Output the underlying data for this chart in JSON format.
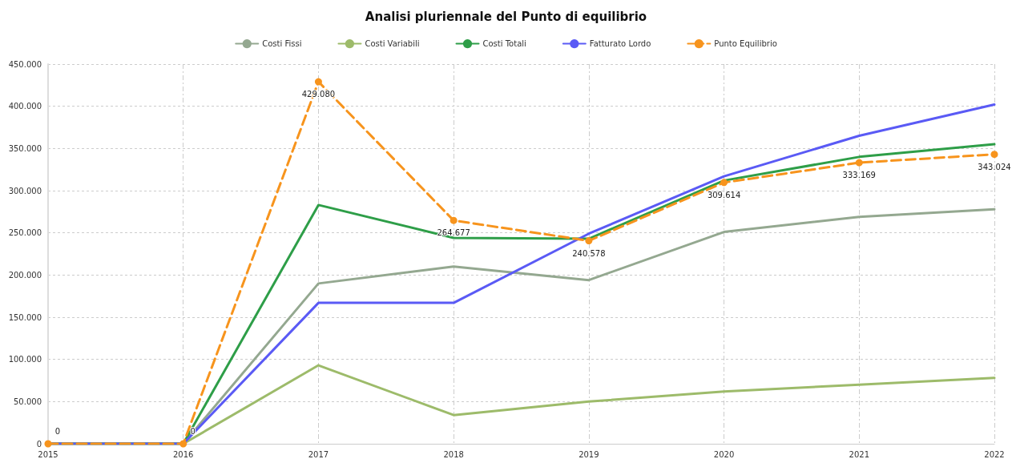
{
  "chart_data": {
    "type": "line",
    "title": "Analisi pluriennale del Punto di equilibrio",
    "categories": [
      "2015",
      "2016",
      "2017",
      "2018",
      "2019",
      "2020",
      "2021",
      "2022"
    ],
    "series": [
      {
        "name": "Costi Fissi",
        "color": "#94a890",
        "values": [
          0,
          0,
          190000,
          210000,
          194000,
          251000,
          269000,
          278000
        ]
      },
      {
        "name": "Costi Variabili",
        "color": "#9dbb6a",
        "values": [
          0,
          0,
          93000,
          34000,
          50000,
          62000,
          70000,
          78000
        ]
      },
      {
        "name": "Costi Totali",
        "color": "#2e9e48",
        "values": [
          0,
          0,
          283000,
          244000,
          243000,
          312000,
          340000,
          355000
        ]
      },
      {
        "name": "Fatturato Lordo",
        "color": "#5a5af5",
        "values": [
          0,
          0,
          167000,
          167000,
          249000,
          317000,
          365000,
          402000
        ]
      },
      {
        "name": "Punto Equilibrio",
        "color": "#f7941d",
        "marker": "circle",
        "line_style": "dashed",
        "values": [
          0,
          0,
          429080,
          264677,
          240578,
          309614,
          333169,
          343024
        ],
        "value_labels": [
          "0",
          "0",
          "429.080",
          "264.677",
          "240.578",
          "309.614",
          "333.169",
          "343.024"
        ]
      }
    ],
    "ylim": [
      0,
      450000
    ],
    "yticks": [
      {
        "value": 0,
        "label": "0"
      },
      {
        "value": 50000,
        "label": "50.000"
      },
      {
        "value": 100000,
        "label": "100.000"
      },
      {
        "value": 150000,
        "label": "150.000"
      },
      {
        "value": 200000,
        "label": "200.000"
      },
      {
        "value": 250000,
        "label": "250.000"
      },
      {
        "value": 300000,
        "label": "300.000"
      },
      {
        "value": 350000,
        "label": "350.000"
      },
      {
        "value": 400000,
        "label": "400.000"
      },
      {
        "value": 450000,
        "label": "450.000"
      }
    ],
    "grid": true,
    "legend": "top",
    "marker": "none",
    "line_style": "solid"
  }
}
